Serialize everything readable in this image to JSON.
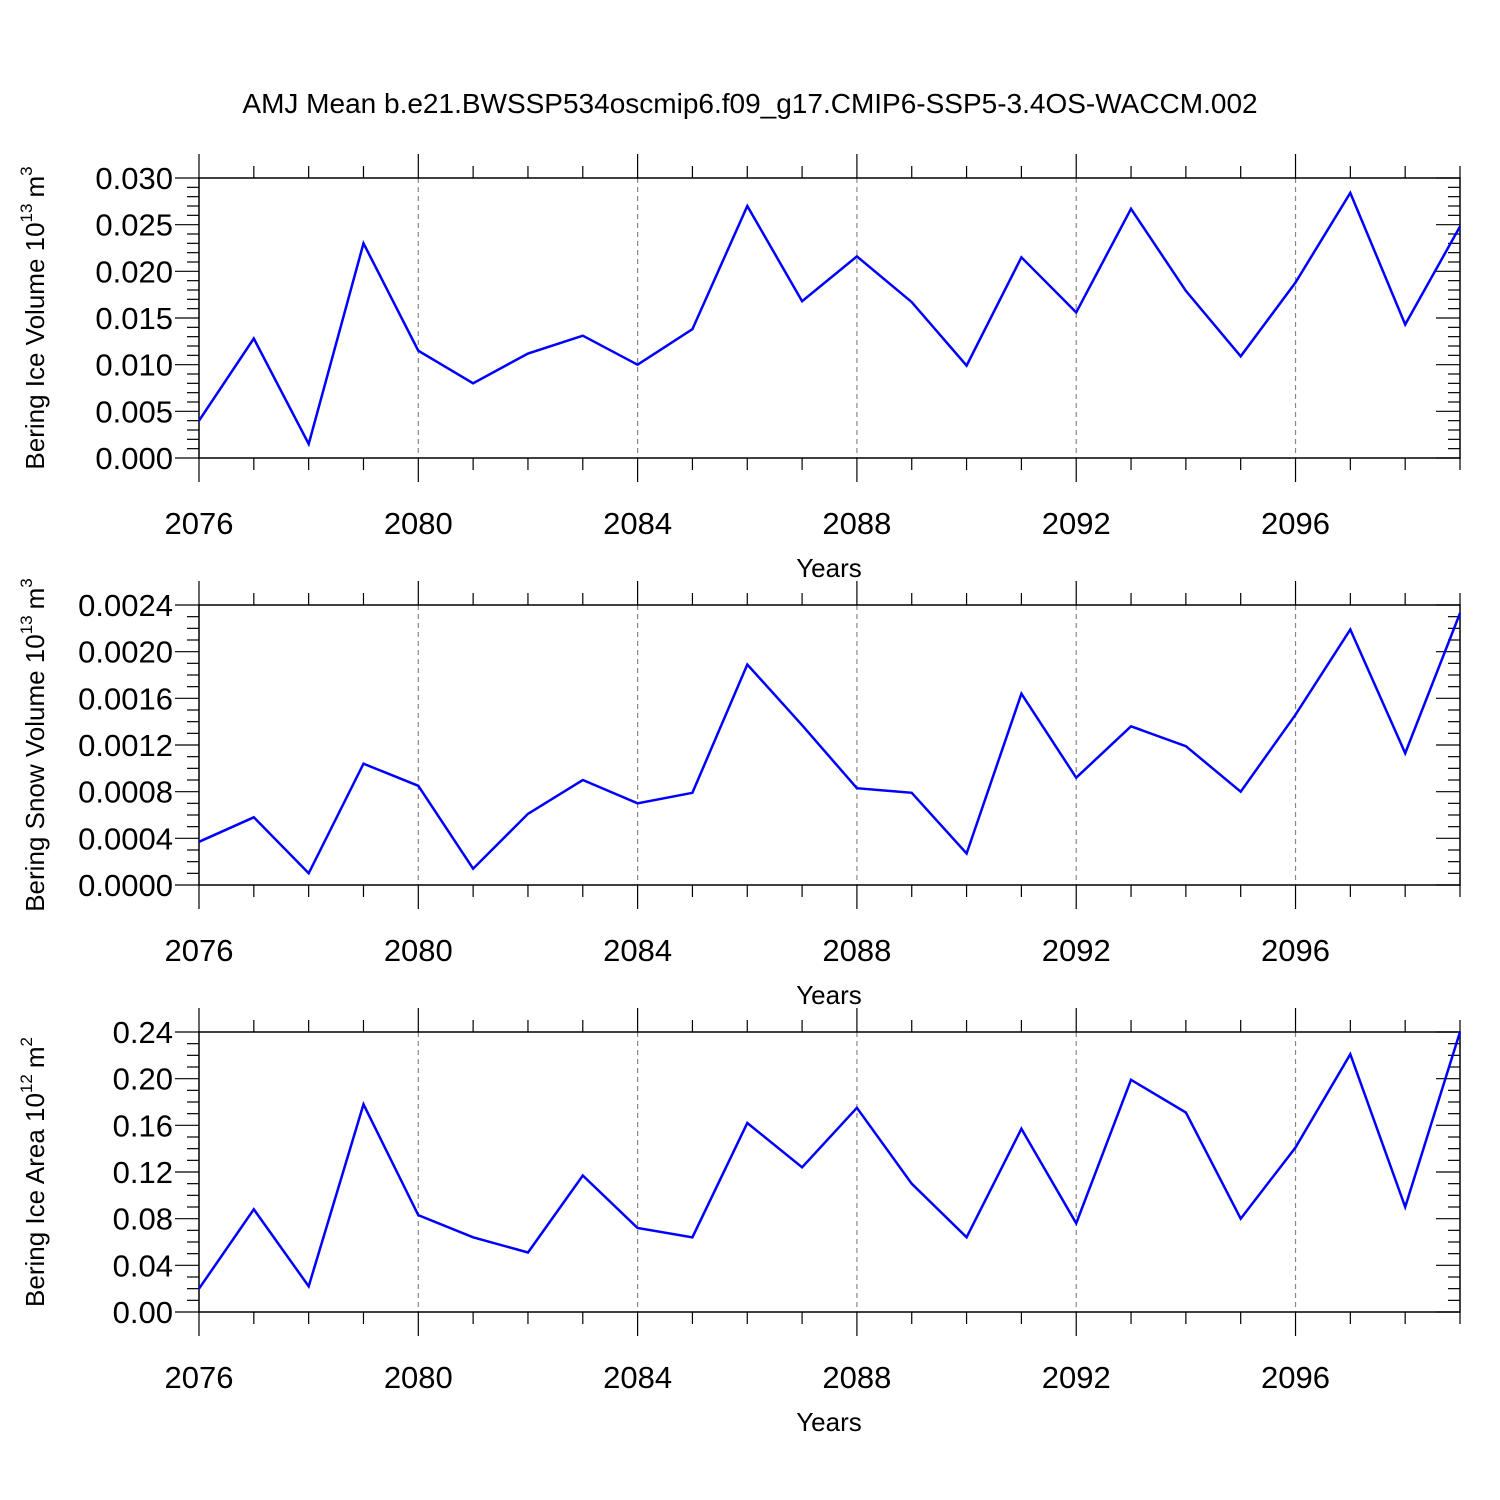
{
  "figure_title": "AMJ Mean b.e21.BWSSP534oscmip6.f09_g17.CMIP6-SSP5-3.4OS-WACCM.002",
  "line_color": "#0000ff",
  "chart_data": [
    {
      "type": "line",
      "ylabel_main": "Bering Ice Volume 10",
      "ylabel_exp": "13",
      "ylabel_unit": "m",
      "ylabel_unit_exp": "3",
      "xlabel": "Years",
      "xlim": [
        2076,
        2099
      ],
      "ylim": [
        0,
        0.03
      ],
      "yticks": [
        "0.000",
        "0.005",
        "0.010",
        "0.015",
        "0.020",
        "0.025",
        "0.030"
      ],
      "ytick_values": [
        0,
        0.005,
        0.01,
        0.015,
        0.02,
        0.025,
        0.03
      ],
      "ystep_minor": 0.001,
      "xticks": [
        "2076",
        "2080",
        "2084",
        "2088",
        "2092",
        "2096"
      ],
      "xtick_values": [
        2076,
        2080,
        2084,
        2088,
        2092,
        2096
      ],
      "grid": "vertical dashed",
      "x": [
        2076,
        2077,
        2078,
        2079,
        2080,
        2081,
        2082,
        2083,
        2084,
        2085,
        2086,
        2087,
        2088,
        2089,
        2090,
        2091,
        2092,
        2093,
        2094,
        2095,
        2096,
        2097,
        2098,
        2099
      ],
      "values": [
        0.004,
        0.0128,
        0.0015,
        0.023,
        0.0115,
        0.008,
        0.0112,
        0.0131,
        0.01,
        0.0138,
        0.027,
        0.0168,
        0.0216,
        0.0167,
        0.0099,
        0.0215,
        0.0156,
        0.0267,
        0.0179,
        0.0109,
        0.0188,
        0.0284,
        0.0143,
        0.0248
      ]
    },
    {
      "type": "line",
      "ylabel_main": "Bering Snow Volume 10",
      "ylabel_exp": "13",
      "ylabel_unit": "m",
      "ylabel_unit_exp": "3",
      "xlabel": "Years",
      "xlim": [
        2076,
        2099
      ],
      "ylim": [
        0,
        0.0024
      ],
      "yticks": [
        "0.0000",
        "0.0004",
        "0.0008",
        "0.0012",
        "0.0016",
        "0.0020",
        "0.0024"
      ],
      "ytick_values": [
        0,
        0.0004,
        0.0008,
        0.0012,
        0.0016,
        0.002,
        0.0024
      ],
      "ystep_minor": 0.0001,
      "xticks": [
        "2076",
        "2080",
        "2084",
        "2088",
        "2092",
        "2096"
      ],
      "xtick_values": [
        2076,
        2080,
        2084,
        2088,
        2092,
        2096
      ],
      "grid": "vertical dashed",
      "x": [
        2076,
        2077,
        2078,
        2079,
        2080,
        2081,
        2082,
        2083,
        2084,
        2085,
        2086,
        2087,
        2088,
        2089,
        2090,
        2091,
        2092,
        2093,
        2094,
        2095,
        2096,
        2097,
        2098,
        2099
      ],
      "values": [
        0.00037,
        0.00058,
        0.0001,
        0.00104,
        0.00085,
        0.00014,
        0.00061,
        0.0009,
        0.0007,
        0.00079,
        0.00189,
        0.00137,
        0.00083,
        0.00079,
        0.00027,
        0.00164,
        0.00092,
        0.00136,
        0.00119,
        0.0008,
        0.00146,
        0.00219,
        0.00113,
        0.00233
      ]
    },
    {
      "type": "line",
      "ylabel_main": "Bering Ice Area 10",
      "ylabel_exp": "12",
      "ylabel_unit": "m",
      "ylabel_unit_exp": "2",
      "xlabel": "Years",
      "xlim": [
        2076,
        2099
      ],
      "ylim": [
        0,
        0.24
      ],
      "yticks": [
        "0.00",
        "0.04",
        "0.08",
        "0.12",
        "0.16",
        "0.20",
        "0.24"
      ],
      "ytick_values": [
        0,
        0.04,
        0.08,
        0.12,
        0.16,
        0.2,
        0.24
      ],
      "ystep_minor": 0.01,
      "xticks": [
        "2076",
        "2080",
        "2084",
        "2088",
        "2092",
        "2096"
      ],
      "xtick_values": [
        2076,
        2080,
        2084,
        2088,
        2092,
        2096
      ],
      "grid": "vertical dashed",
      "x": [
        2076,
        2077,
        2078,
        2079,
        2080,
        2081,
        2082,
        2083,
        2084,
        2085,
        2086,
        2087,
        2088,
        2089,
        2090,
        2091,
        2092,
        2093,
        2094,
        2095,
        2096,
        2097,
        2098,
        2099
      ],
      "values": [
        0.02,
        0.088,
        0.022,
        0.178,
        0.083,
        0.064,
        0.051,
        0.117,
        0.072,
        0.064,
        0.162,
        0.124,
        0.175,
        0.11,
        0.064,
        0.157,
        0.076,
        0.199,
        0.171,
        0.08,
        0.141,
        0.221,
        0.09,
        0.24
      ]
    }
  ]
}
